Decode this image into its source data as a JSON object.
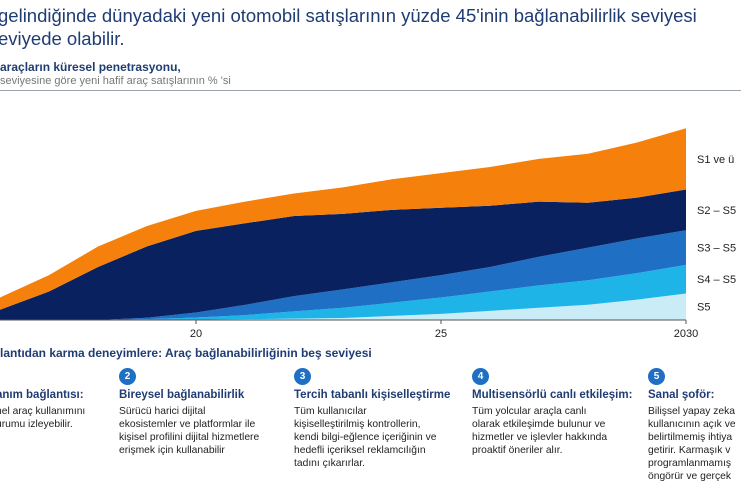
{
  "headline": {
    "line1": "gelindiğinde dünyadaki yeni otomobil satışlarının yüzde 45'inin bağlanabilirlik seviyesi",
    "line2": "eviyede olabilir."
  },
  "chart_title": "araçların küresel penetrasyonu,",
  "chart_subtitle": "seviyesine göre yeni hafif araç satışlarının  % 'si",
  "chart_data": {
    "type": "area",
    "x": [
      2016,
      2017,
      2018,
      2019,
      2020,
      2021,
      2022,
      2023,
      2024,
      2025,
      2026,
      2027,
      2028,
      2029,
      2030
    ],
    "x_tick_labels": [
      "20",
      "25",
      "2030"
    ],
    "ylim": [
      0,
      100
    ],
    "stacked": true,
    "series": [
      {
        "name": "S5",
        "color": "#c9ecf7",
        "values": [
          0,
          0,
          0,
          0,
          0.2,
          0.4,
          0.7,
          1,
          2,
          3,
          4.5,
          6,
          7.5,
          10,
          13
        ]
      },
      {
        "name": "S4 – S5",
        "color": "#1fb4e8",
        "values": [
          0,
          0,
          0,
          0.4,
          1,
          2,
          3.5,
          5,
          6.5,
          8,
          9.5,
          11,
          12,
          13,
          14
        ]
      },
      {
        "name": "S3 – S5",
        "color": "#1f6fc5",
        "values": [
          0,
          0,
          0,
          0.7,
          2.5,
          5,
          7.5,
          9,
          10,
          11,
          12,
          14,
          16,
          17,
          17
        ]
      },
      {
        "name": "S2 – S5",
        "color": "#0a2160",
        "values": [
          5,
          14,
          26,
          35,
          40,
          40,
          39.3,
          37,
          35.5,
          33,
          30,
          27,
          22,
          20,
          20
        ]
      },
      {
        "name": "S1 ve ü",
        "color": "#f5800b",
        "values": [
          6,
          8,
          10,
          10,
          9.8,
          10.6,
          11,
          13,
          15,
          17,
          19,
          21,
          24,
          27,
          30
        ]
      }
    ]
  },
  "section_title": "lantıdan karma deneyimlere: Araç bağlanabilirliğinin  beş seviyesi",
  "levels": [
    {
      "number": "",
      "title": "anım bağlantısı:",
      "desc": [
        "nel araç kullanımını",
        "urumu  izleyebilir."
      ]
    },
    {
      "number": "2",
      "title": "Bireysel bağlanabilirlik",
      "desc": [
        "Sürücü harici dijital",
        "ekosistemler ve platformlar  ile",
        "kişisel profilini dijital hizmetlere",
        "erişmek için kullanabilir"
      ]
    },
    {
      "number": "3",
      "title": "Tercih tabanlı kişiselleştirme",
      "desc": [
        "Tüm kullanıcılar",
        "kişiselleştirilmiş kontrollerin,",
        "kendi bilgi-eğlence içeriğinin ve",
        "hedefli içeriksel reklamcılığın",
        "tadını  çıkarırlar."
      ]
    },
    {
      "number": "4",
      "title": "Multisensörlü canlı etkileşim:",
      "desc": [
        "Tüm yolcular  araçla canlı",
        "olarak etkileşimde bulunur ve",
        "hizmetler ve işlevler hakkında",
        "proaktif öneriler alır."
      ]
    },
    {
      "number": "5",
      "title": "Sanal şoför:",
      "desc": [
        "Bilişsel yapay zeka",
        "kullanıcının   açık ve",
        "belirtilmemiş ihtiya",
        "getirir. Karmaşık v",
        "programlanmamış",
        "öngörür ve gerçek"
      ]
    }
  ]
}
